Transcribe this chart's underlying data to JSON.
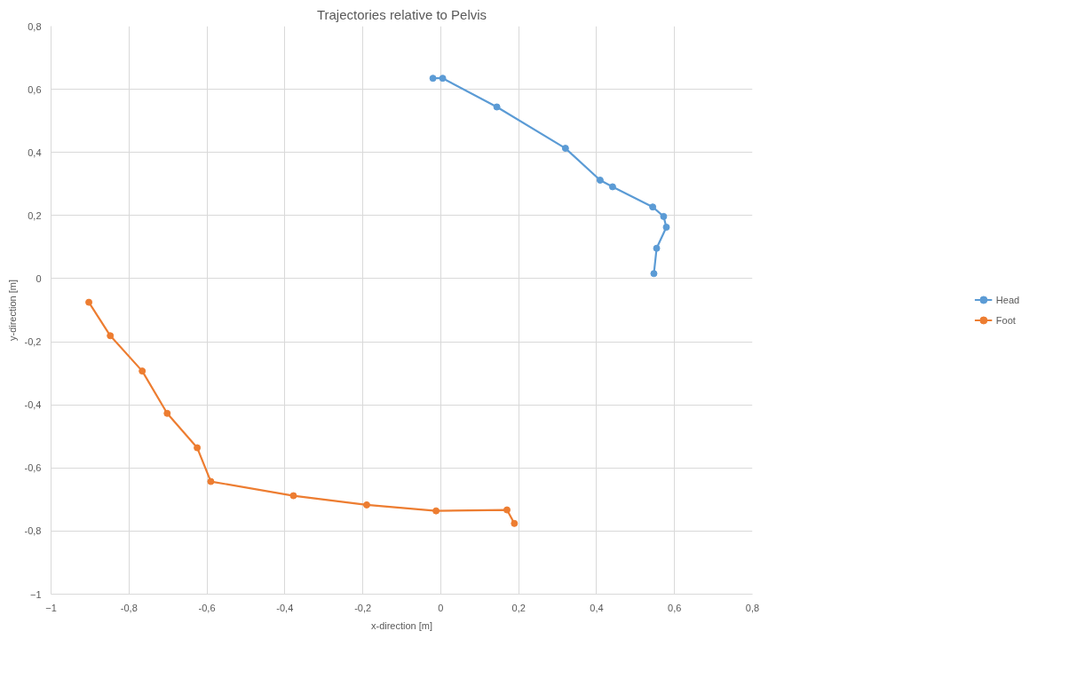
{
  "chart_data": {
    "type": "line",
    "title": "Trajectories relative to Pelvis",
    "xlabel": "x-direction [m]",
    "ylabel": "y-direction [m]",
    "xlim": [
      -1,
      0.8
    ],
    "ylim": [
      -1,
      0.8
    ],
    "xticks": [
      -1,
      {
        "value": -0.8,
        "label": "-0,8"
      },
      {
        "value": -0.6,
        "label": "-0,6"
      },
      {
        "value": -0.4,
        "label": "-0,4"
      },
      {
        "value": -0.2,
        "label": "-0,2"
      },
      0,
      {
        "value": 0.2,
        "label": "0,2"
      },
      {
        "value": 0.4,
        "label": "0,4"
      },
      {
        "value": 0.6,
        "label": "0,6"
      },
      {
        "value": 0.8,
        "label": "0,8"
      }
    ],
    "yticks": [
      -1,
      {
        "value": -0.8,
        "label": "-0,8"
      },
      {
        "value": -0.6,
        "label": "-0,6"
      },
      {
        "value": -0.4,
        "label": "-0,4"
      },
      {
        "value": -0.2,
        "label": "-0,2"
      },
      0,
      {
        "value": 0.2,
        "label": "0,2"
      },
      {
        "value": 0.4,
        "label": "0,4"
      },
      {
        "value": 0.6,
        "label": "0,6"
      },
      {
        "value": 0.8,
        "label": "0,8"
      }
    ],
    "series": [
      {
        "name": "Head",
        "color": "#5b9bd5",
        "x": [
          -0.02,
          0.005,
          0.144,
          0.32,
          0.409,
          0.441,
          0.544,
          0.572,
          0.579,
          0.554,
          0.547
        ],
        "values": [
          0.635,
          0.635,
          0.544,
          0.413,
          0.312,
          0.291,
          0.227,
          0.197,
          0.163,
          0.096,
          0.016
        ]
      },
      {
        "name": "Foot",
        "color": "#ed7d31",
        "x": [
          -0.903,
          -0.848,
          -0.766,
          -0.702,
          -0.625,
          -0.59,
          -0.378,
          -0.19,
          -0.012,
          0.17,
          0.189
        ],
        "values": [
          -0.075,
          -0.181,
          -0.293,
          -0.427,
          -0.536,
          -0.643,
          -0.688,
          -0.717,
          -0.736,
          -0.733,
          -0.776
        ]
      }
    ],
    "grid": true,
    "legend": "right",
    "marker": "circle",
    "line_style": "solid"
  }
}
